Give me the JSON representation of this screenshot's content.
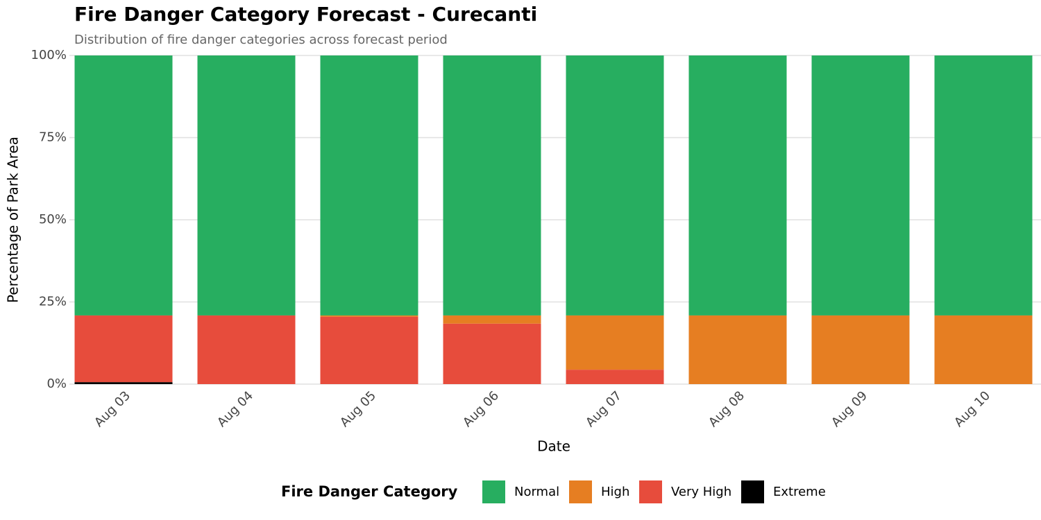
{
  "chart_data": {
    "type": "stacked_bar",
    "title": "Fire Danger Category Forecast - Curecanti",
    "subtitle": "Distribution of fire danger categories across forecast period",
    "x_label": "Date",
    "y_label": "Percentage of Park Area",
    "legend_title": "Fire Danger Category",
    "categories": [
      "Aug 03",
      "Aug 04",
      "Aug 05",
      "Aug 06",
      "Aug 07",
      "Aug 08",
      "Aug 09",
      "Aug 10"
    ],
    "series": [
      {
        "name": "Normal",
        "color": "#27ae60",
        "values": [
          79.1,
          79.1,
          79.1,
          79.1,
          79.1,
          79.1,
          79.1,
          79.1
        ]
      },
      {
        "name": "High",
        "color": "#e67e22",
        "values": [
          0,
          0,
          0.4,
          2.5,
          16.5,
          20.9,
          20.9,
          20.9
        ]
      },
      {
        "name": "Very High",
        "color": "#e74c3c",
        "values": [
          20.3,
          20.9,
          20.5,
          18.4,
          4.4,
          0,
          0,
          0
        ]
      },
      {
        "name": "Extreme",
        "color": "#000000",
        "values": [
          0.6,
          0,
          0,
          0,
          0,
          0,
          0,
          0
        ]
      }
    ],
    "ylim": [
      0,
      100
    ],
    "yticks": [
      {
        "value": 0,
        "label": "0%"
      },
      {
        "value": 25,
        "label": "25%"
      },
      {
        "value": 50,
        "label": "50%"
      },
      {
        "value": 75,
        "label": "75%"
      },
      {
        "value": 100,
        "label": "100%"
      }
    ],
    "grid": true,
    "legend_position": "bottom"
  }
}
